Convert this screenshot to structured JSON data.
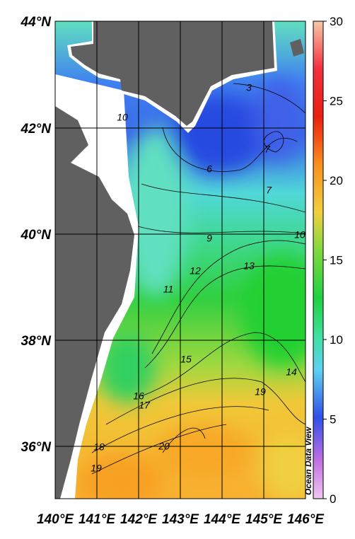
{
  "map": {
    "lat_labels": [
      "44°N",
      "42°N",
      "40°N",
      "38°N",
      "36°N"
    ],
    "lon_labels": [
      "140°E",
      "141°E",
      "142°E",
      "143°E",
      "144°E",
      "145°E",
      "146°E"
    ],
    "colorbar": {
      "range": [
        0,
        30
      ],
      "ticks": [
        0,
        5,
        10,
        15,
        20,
        25,
        30
      ]
    },
    "contour_labels": [
      3,
      6,
      7,
      7,
      9,
      10,
      10,
      11,
      12,
      13,
      14,
      15,
      16,
      17,
      18,
      19,
      19,
      20
    ],
    "watermark": "Ocean Data View"
  }
}
